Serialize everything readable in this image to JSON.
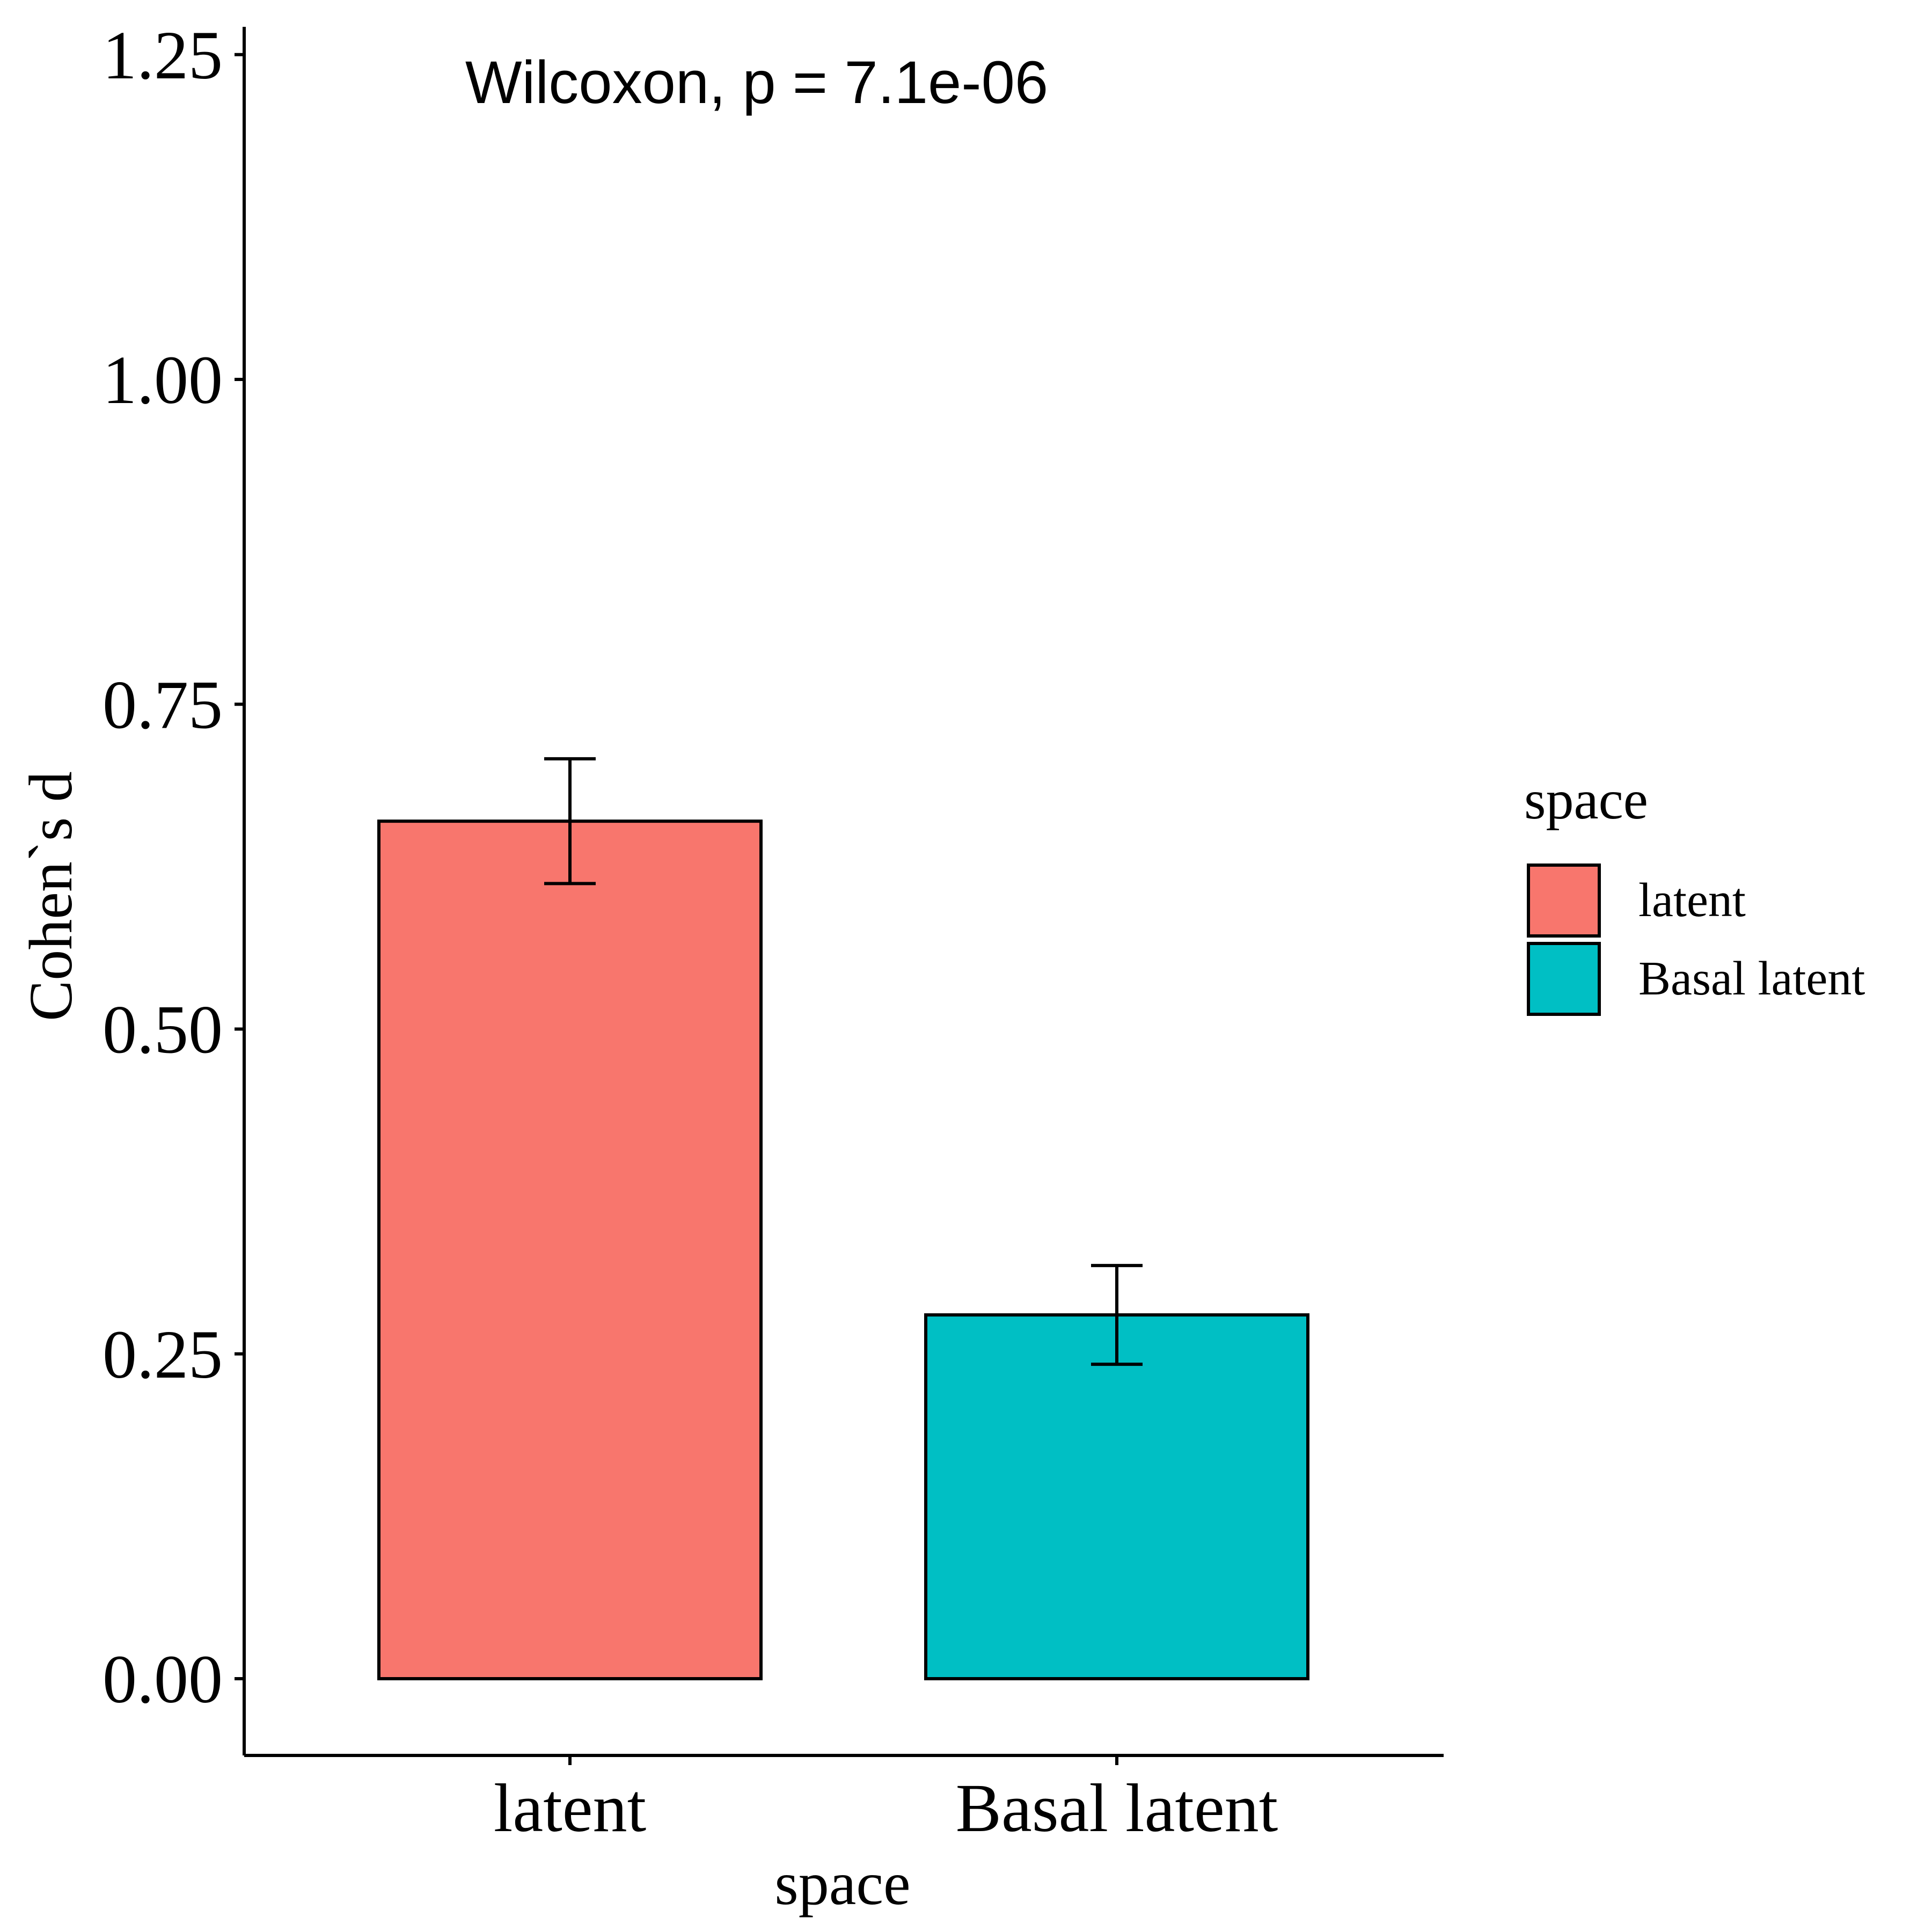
{
  "chart_data": {
    "type": "bar",
    "categories": [
      "latent",
      "Basal latent"
    ],
    "values": [
      0.66,
      0.28
    ],
    "error_low": [
      0.612,
      0.242
    ],
    "error_high": [
      0.708,
      0.318
    ],
    "colors": [
      "#F8766D",
      "#00BFC4"
    ],
    "xlabel": "space",
    "ylabel": "Cohen`s d",
    "ylim": [
      -0.06,
      1.27
    ],
    "yticks": [
      0.0,
      0.25,
      0.5,
      0.75,
      1.0,
      1.25
    ],
    "ytick_labels": [
      "0.00",
      "0.25",
      "0.50",
      "0.75",
      "1.00",
      "1.25"
    ],
    "annotation": "Wilcoxon, p = 7.1e-06",
    "grid": false,
    "legend": {
      "title": "space",
      "position": "right",
      "entries": [
        "latent",
        "Basal latent"
      ]
    }
  }
}
